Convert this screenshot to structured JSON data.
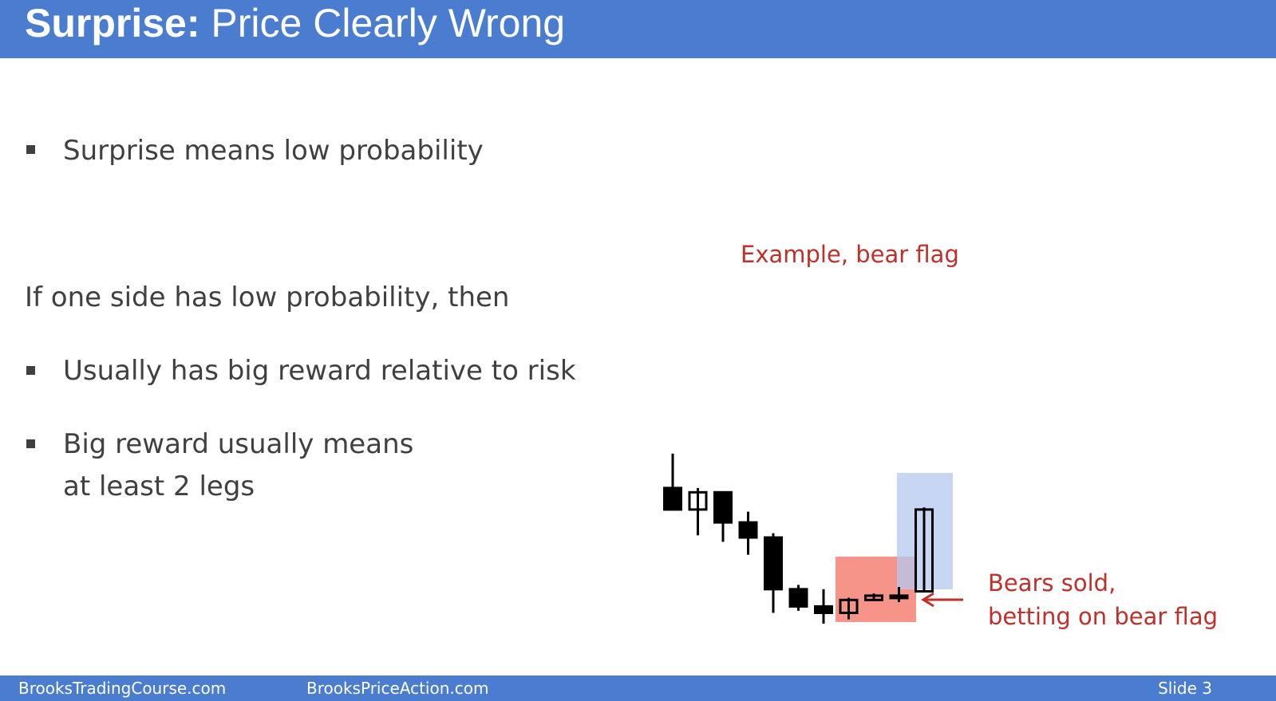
{
  "header": {
    "title_bold": "Surprise:",
    "title_rest": "Price Clearly Wrong"
  },
  "bullets_top": [
    {
      "text": "Surprise means low probability"
    }
  ],
  "intro": "If one side has low probability, then",
  "bullets_bottom": [
    {
      "text": "Usually has big reward relative to risk"
    },
    {
      "line1": "Big reward usually means",
      "line2": "at least 2 legs"
    }
  ],
  "example_label": "Example, bear flag",
  "annotation": {
    "line1": "Bears sold,",
    "line2": "betting on bear flag"
  },
  "colors": {
    "header": "#4a7ccf",
    "text": "#404040",
    "accent": "#c0302a",
    "red_box": "#f26b5b",
    "blue_box": "#b4c8ee"
  },
  "footer": {
    "left": "BrooksTradingCourse.com",
    "center": "BrooksPriceAction.com",
    "right": "Slide  3"
  },
  "candles": [
    {
      "o": 8.2,
      "h": 9.8,
      "l": 7.2,
      "c": 7.2
    },
    {
      "o": 7.2,
      "h": 8.2,
      "l": 6.0,
      "c": 8.0
    },
    {
      "o": 8.0,
      "h": 8.0,
      "l": 5.7,
      "c": 6.6
    },
    {
      "o": 6.6,
      "h": 7.1,
      "l": 5.1,
      "c": 5.9
    },
    {
      "o": 5.9,
      "h": 6.1,
      "l": 2.4,
      "c": 3.5
    },
    {
      "o": 3.5,
      "h": 3.7,
      "l": 2.5,
      "c": 2.7
    },
    {
      "o": 2.7,
      "h": 3.5,
      "l": 1.9,
      "c": 2.4
    },
    {
      "o": 2.4,
      "h": 3.1,
      "l": 2.1,
      "c": 3.0
    },
    {
      "o": 3.0,
      "h": 3.3,
      "l": 3.0,
      "c": 3.2
    },
    {
      "o": 3.2,
      "h": 3.6,
      "l": 2.9,
      "c": 3.2
    },
    {
      "o": 3.4,
      "h": 7.3,
      "l": 3.4,
      "c": 7.2
    }
  ]
}
